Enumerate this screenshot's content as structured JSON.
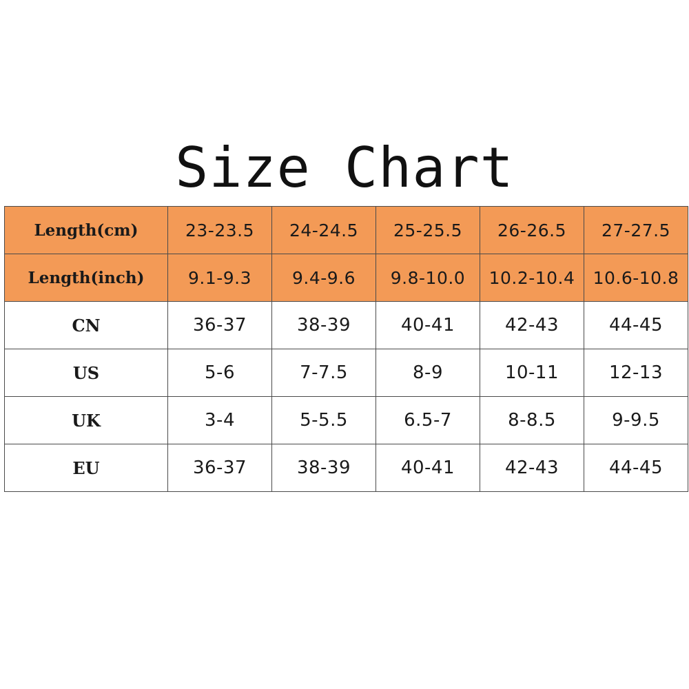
{
  "title": "Size Chart",
  "colors": {
    "accent": "#f39a56",
    "border": "#4a4a4a",
    "background": "#ffffff"
  },
  "table": {
    "rows": [
      {
        "label": "Length(cm)",
        "accent": true,
        "values": [
          "23-23.5",
          "24-24.5",
          "25-25.5",
          "26-26.5",
          "27-27.5"
        ]
      },
      {
        "label": "Length(inch)",
        "accent": true,
        "values": [
          "9.1-9.3",
          "9.4-9.6",
          "9.8-10.0",
          "10.2-10.4",
          "10.6-10.8"
        ]
      },
      {
        "label": "CN",
        "accent": false,
        "values": [
          "36-37",
          "38-39",
          "40-41",
          "42-43",
          "44-45"
        ]
      },
      {
        "label": "US",
        "accent": false,
        "values": [
          "5-6",
          "7-7.5",
          "8-9",
          "10-11",
          "12-13"
        ]
      },
      {
        "label": "UK",
        "accent": false,
        "values": [
          "3-4",
          "5-5.5",
          "6.5-7",
          "8-8.5",
          "9-9.5"
        ]
      },
      {
        "label": "EU",
        "accent": false,
        "values": [
          "36-37",
          "38-39",
          "40-41",
          "42-43",
          "44-45"
        ]
      }
    ]
  }
}
